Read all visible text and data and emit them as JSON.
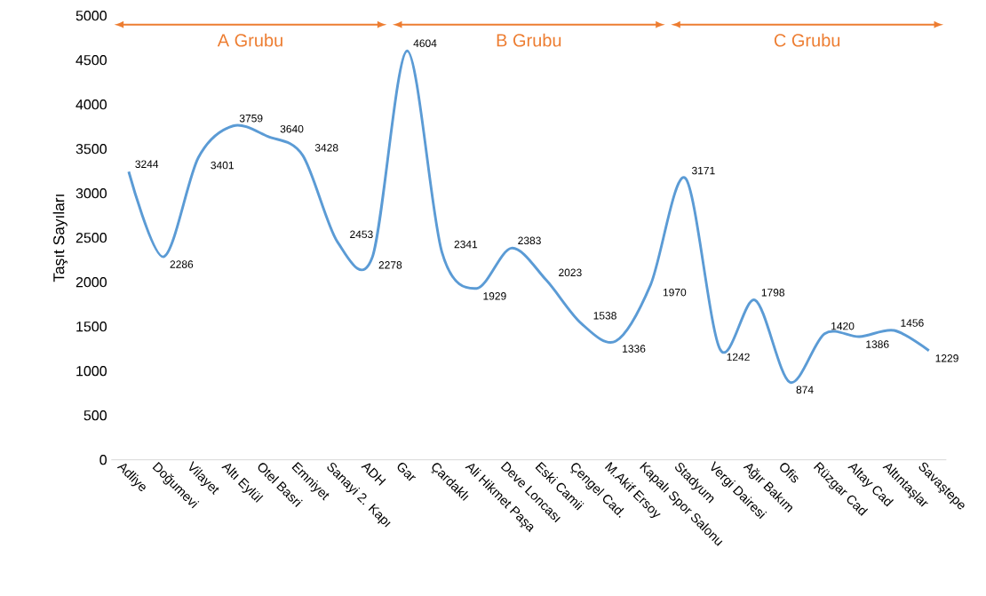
{
  "chart_data": {
    "type": "line",
    "ylabel": "Taşıt Sayıları",
    "categories": [
      "Adliye",
      "Doğumevi",
      "Vilayet",
      "Altı Eylül",
      "Otel Basri",
      "Emniyet",
      "Sanayi 2. Kapı",
      "ADH",
      "Gar",
      "Çardaklı",
      "Ali Hikmet Paşa",
      "Deve Loncası",
      "Eski Camii",
      "Çengel Cad.",
      "M.Akif Ersoy",
      "Kapalı Spor Salonu",
      "Stadyum",
      "Vergi Dairesi",
      "Ağır Bakım",
      "Ofis",
      "Rüzgar Cad",
      "Altay Cad",
      "Altıntaşlar",
      "Savaştepe"
    ],
    "values": [
      3244,
      2286,
      3401,
      3759,
      3640,
      3428,
      2453,
      2278,
      4604,
      2341,
      1929,
      2383,
      2023,
      1538,
      1336,
      1970,
      3171,
      1242,
      1798,
      874,
      1420,
      1386,
      1456,
      1229
    ],
    "color": "#5b9bd5",
    "ylim": [
      0,
      5000
    ],
    "yticks": [
      0,
      500,
      1000,
      1500,
      2000,
      2500,
      3000,
      3500,
      4000,
      4500,
      5000
    ],
    "grid": false,
    "marker": "none",
    "line_style": "solid",
    "data_labels": true,
    "annotations": [
      "A Grubu",
      "B Grubu",
      "C Grubu"
    ]
  }
}
